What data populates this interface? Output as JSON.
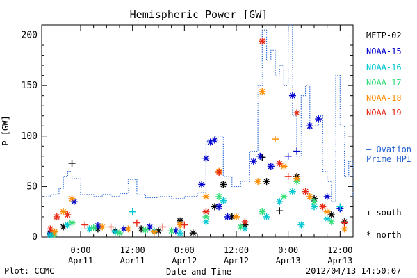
{
  "chart_data": {
    "type": "scatter",
    "title": "Hemispheric Power [GW]",
    "xlabel": "Date and Time",
    "ylabel": "P [GW]",
    "ylim": [
      0,
      210
    ],
    "xlim": [
      "2012-04-10 15:00",
      "2012-04-13 15:00"
    ],
    "y_ticks": [
      0,
      50,
      100,
      150,
      200
    ],
    "x_ticks": [
      {
        "time": "2012-04-11 00:00",
        "label1": "0:00",
        "label2": "Apr11"
      },
      {
        "time": "2012-04-11 12:00",
        "label1": "12:00",
        "label2": "Apr11"
      },
      {
        "time": "2012-04-12 00:00",
        "label1": "0:00",
        "label2": "Apr12"
      },
      {
        "time": "2012-04-12 12:00",
        "label1": "12:00",
        "label2": "Apr12"
      },
      {
        "time": "2012-04-13 00:00",
        "label1": "0:00",
        "label2": "Apr13"
      },
      {
        "time": "2012-04-13 12:00",
        "label1": "12:00",
        "label2": "Apr13"
      }
    ],
    "legend_position": "right",
    "series": [
      {
        "name": "METP-02",
        "color": "#000000",
        "points": [
          [
            "2012-04-10 17:00",
            3,
            "north"
          ],
          [
            "2012-04-10 20:00",
            10,
            "north"
          ],
          [
            "2012-04-10 22:00",
            73,
            "south"
          ],
          [
            "2012-04-11 04:00",
            8,
            "north"
          ],
          [
            "2012-04-11 08:00",
            6,
            "north"
          ],
          [
            "2012-04-11 14:00",
            8,
            "north"
          ],
          [
            "2012-04-11 18:00",
            6,
            "north"
          ],
          [
            "2012-04-11 23:00",
            16,
            "north"
          ],
          [
            "2012-04-12 02:00",
            4,
            "north"
          ],
          [
            "2012-04-12 07:00",
            30,
            "north"
          ],
          [
            "2012-04-12 09:00",
            52,
            "north"
          ],
          [
            "2012-04-12 11:00",
            20,
            "north"
          ],
          [
            "2012-04-12 14:00",
            12,
            "north"
          ],
          [
            "2012-04-12 18:00",
            79,
            "south"
          ],
          [
            "2012-04-12 19:00",
            55,
            "north"
          ],
          [
            "2012-04-12 22:00",
            26,
            "south"
          ],
          [
            "2012-04-13 02:00",
            60,
            "north"
          ],
          [
            "2012-04-13 06:00",
            38,
            "north"
          ],
          [
            "2012-04-13 10:00",
            22,
            "north"
          ],
          [
            "2012-04-13 13:00",
            15,
            "north"
          ]
        ]
      },
      {
        "name": "NOAA-15",
        "color": "#0000cd",
        "points": [
          [
            "2012-04-10 17:00",
            4,
            "north"
          ],
          [
            "2012-04-10 22:30",
            35,
            "north"
          ],
          [
            "2012-04-11 04:00",
            11,
            "north"
          ],
          [
            "2012-04-11 10:00",
            8,
            "north"
          ],
          [
            "2012-04-11 16:00",
            10,
            "north"
          ],
          [
            "2012-04-11 22:00",
            6,
            "north"
          ],
          [
            "2012-04-12 04:00",
            52,
            "north"
          ],
          [
            "2012-04-12 05:00",
            78,
            "north"
          ],
          [
            "2012-04-12 06:00",
            94,
            "north"
          ],
          [
            "2012-04-12 07:00",
            96,
            "north"
          ],
          [
            "2012-04-12 08:00",
            30,
            "north"
          ],
          [
            "2012-04-12 10:00",
            20,
            "north"
          ],
          [
            "2012-04-12 16:00",
            75,
            "north"
          ],
          [
            "2012-04-12 17:30",
            80,
            "north"
          ],
          [
            "2012-04-12 20:00",
            70,
            "north"
          ],
          [
            "2012-04-13 00:00",
            80,
            "south"
          ],
          [
            "2012-04-13 01:00",
            140,
            "north"
          ],
          [
            "2012-04-13 02:00",
            85,
            "south"
          ],
          [
            "2012-04-13 05:00",
            110,
            "north"
          ],
          [
            "2012-04-13 07:00",
            117,
            "north"
          ],
          [
            "2012-04-13 09:00",
            40,
            "north"
          ],
          [
            "2012-04-13 12:00",
            28,
            "north"
          ]
        ]
      },
      {
        "name": "NOAA-16",
        "color": "#00c8d2",
        "points": [
          [
            "2012-04-10 17:00",
            2,
            "north"
          ],
          [
            "2012-04-10 21:00",
            12,
            "north"
          ],
          [
            "2012-04-11 02:00",
            8,
            "north"
          ],
          [
            "2012-04-11 08:00",
            5,
            "north"
          ],
          [
            "2012-04-11 12:00",
            25,
            "south"
          ],
          [
            "2012-04-11 17:00",
            6,
            "north"
          ],
          [
            "2012-04-11 23:00",
            4,
            "north"
          ],
          [
            "2012-04-12 05:00",
            15,
            "north"
          ],
          [
            "2012-04-12 09:00",
            36,
            "north"
          ],
          [
            "2012-04-12 14:00",
            8,
            "north"
          ],
          [
            "2012-04-12 19:00",
            20,
            "north"
          ],
          [
            "2012-04-12 22:00",
            35,
            "north"
          ],
          [
            "2012-04-13 01:00",
            45,
            "north"
          ],
          [
            "2012-04-13 03:00",
            12,
            "north"
          ],
          [
            "2012-04-13 06:00",
            30,
            "north"
          ],
          [
            "2012-04-13 09:00",
            18,
            "north"
          ],
          [
            "2012-04-13 12:00",
            30,
            "south"
          ]
        ]
      },
      {
        "name": "NOAA-17",
        "color": "#32dc78",
        "points": [
          [
            "2012-04-10 18:00",
            3,
            "north"
          ],
          [
            "2012-04-10 22:00",
            14,
            "north"
          ],
          [
            "2012-04-11 03:00",
            9,
            "north"
          ],
          [
            "2012-04-11 09:00",
            4,
            "north"
          ],
          [
            "2012-04-11 15:00",
            7,
            "north"
          ],
          [
            "2012-04-11 21:00",
            6,
            "north"
          ],
          [
            "2012-04-12 05:00",
            20,
            "north"
          ],
          [
            "2012-04-12 08:00",
            40,
            "north"
          ],
          [
            "2012-04-12 13:00",
            10,
            "north"
          ],
          [
            "2012-04-12 18:00",
            25,
            "north"
          ],
          [
            "2012-04-12 23:00",
            40,
            "north"
          ],
          [
            "2012-04-13 02:00",
            55,
            "north"
          ],
          [
            "2012-04-13 06:00",
            35,
            "north"
          ],
          [
            "2012-04-13 10:00",
            15,
            "north"
          ]
        ]
      },
      {
        "name": "NOAA-18",
        "color": "#ff8c00",
        "points": [
          [
            "2012-04-10 18:00",
            5,
            "north"
          ],
          [
            "2012-04-10 20:00",
            25,
            "north"
          ],
          [
            "2012-04-10 22:00",
            38,
            "north"
          ],
          [
            "2012-04-11 05:00",
            10,
            "north"
          ],
          [
            "2012-04-11 11:00",
            8,
            "north"
          ],
          [
            "2012-04-11 17:00",
            5,
            "north"
          ],
          [
            "2012-04-11 23:00",
            12,
            "north"
          ],
          [
            "2012-04-12 05:00",
            40,
            "north"
          ],
          [
            "2012-04-12 08:00",
            65,
            "north"
          ],
          [
            "2012-04-12 12:00",
            20,
            "north"
          ],
          [
            "2012-04-12 17:00",
            55,
            "north"
          ],
          [
            "2012-04-12 18:00",
            144,
            "north"
          ],
          [
            "2012-04-12 21:00",
            97,
            "south"
          ],
          [
            "2012-04-12 23:00",
            70,
            "north"
          ],
          [
            "2012-04-13 02:00",
            58,
            "north"
          ],
          [
            "2012-04-13 05:00",
            40,
            "north"
          ],
          [
            "2012-04-13 09:00",
            25,
            "north"
          ],
          [
            "2012-04-13 13:00",
            8,
            "north"
          ]
        ]
      },
      {
        "name": "NOAA-19",
        "color": "#e62814",
        "points": [
          [
            "2012-04-10 17:00",
            8,
            "north"
          ],
          [
            "2012-04-10 18:30",
            20,
            "north"
          ],
          [
            "2012-04-10 21:00",
            22,
            "north"
          ],
          [
            "2012-04-11 01:00",
            12,
            "south"
          ],
          [
            "2012-04-11 07:00",
            10,
            "south"
          ],
          [
            "2012-04-11 13:00",
            14,
            "south"
          ],
          [
            "2012-04-11 19:00",
            10,
            "south"
          ],
          [
            "2012-04-12 00:00",
            12,
            "south"
          ],
          [
            "2012-04-12 05:00",
            25,
            "north"
          ],
          [
            "2012-04-12 08:00",
            64,
            "north"
          ],
          [
            "2012-04-12 14:00",
            15,
            "north"
          ],
          [
            "2012-04-12 18:00",
            194,
            "north"
          ],
          [
            "2012-04-12 22:00",
            73,
            "north"
          ],
          [
            "2012-04-13 00:00",
            60,
            "south"
          ],
          [
            "2012-04-13 02:00",
            123,
            "north"
          ],
          [
            "2012-04-13 04:00",
            45,
            "north"
          ],
          [
            "2012-04-13 08:00",
            30,
            "north"
          ],
          [
            "2012-04-13 13:00",
            14,
            "south"
          ]
        ]
      },
      {
        "name": "Ovation Prime HPI",
        "color": "#1f5fd0",
        "style": "dotted-step",
        "points": [
          [
            "2012-04-10 15:00",
            40
          ],
          [
            "2012-04-10 17:00",
            42
          ],
          [
            "2012-04-10 19:00",
            48
          ],
          [
            "2012-04-10 20:00",
            60
          ],
          [
            "2012-04-10 21:00",
            65
          ],
          [
            "2012-04-10 22:00",
            58
          ],
          [
            "2012-04-11 00:00",
            42
          ],
          [
            "2012-04-11 03:00",
            40
          ],
          [
            "2012-04-11 05:00",
            42
          ],
          [
            "2012-04-11 07:00",
            40
          ],
          [
            "2012-04-11 09:00",
            43
          ],
          [
            "2012-04-11 11:00",
            57
          ],
          [
            "2012-04-11 13:00",
            42
          ],
          [
            "2012-04-11 15:00",
            39
          ],
          [
            "2012-04-11 18:00",
            40
          ],
          [
            "2012-04-11 21:00",
            38
          ],
          [
            "2012-04-12 00:00",
            40
          ],
          [
            "2012-04-12 03:00",
            44
          ],
          [
            "2012-04-12 05:00",
            95
          ],
          [
            "2012-04-12 07:00",
            100
          ],
          [
            "2012-04-12 09:00",
            60
          ],
          [
            "2012-04-12 11:00",
            50
          ],
          [
            "2012-04-12 13:00",
            55
          ],
          [
            "2012-04-12 15:00",
            85
          ],
          [
            "2012-04-12 17:00",
            150
          ],
          [
            "2012-04-12 18:00",
            205
          ],
          [
            "2012-04-12 19:00",
            175
          ],
          [
            "2012-04-12 20:00",
            185
          ],
          [
            "2012-04-12 21:00",
            160
          ],
          [
            "2012-04-12 22:00",
            170
          ],
          [
            "2012-04-12 23:00",
            150
          ],
          [
            "2012-04-13 00:00",
            210
          ],
          [
            "2012-04-13 01:00",
            120
          ],
          [
            "2012-04-13 02:00",
            80
          ],
          [
            "2012-04-13 03:00",
            140
          ],
          [
            "2012-04-13 04:00",
            150
          ],
          [
            "2012-04-13 05:00",
            110
          ],
          [
            "2012-04-13 07:00",
            120
          ],
          [
            "2012-04-13 08:00",
            65
          ],
          [
            "2012-04-13 09:00",
            55
          ],
          [
            "2012-04-13 10:00",
            35
          ],
          [
            "2012-04-13 11:00",
            160
          ],
          [
            "2012-04-13 12:00",
            110
          ],
          [
            "2012-04-13 13:00",
            60
          ],
          [
            "2012-04-13 14:00",
            75
          ],
          [
            "2012-04-13 15:00",
            40
          ]
        ]
      }
    ]
  },
  "legend": {
    "items": [
      "METP-02",
      "NOAA-15",
      "NOAA-16",
      "NOAA-17",
      "NOAA-18",
      "NOAA-19"
    ],
    "ovation_line1": "– Ovation",
    "ovation_line2": "Prime HPI",
    "south_label": "+ south",
    "north_label": "* north"
  },
  "footer": {
    "left": "Plot: CCMC",
    "timestamp": "2012/04/13 14:50:07"
  },
  "colors": {
    "axis": "#000000",
    "ovation": "#1f5fd0"
  }
}
